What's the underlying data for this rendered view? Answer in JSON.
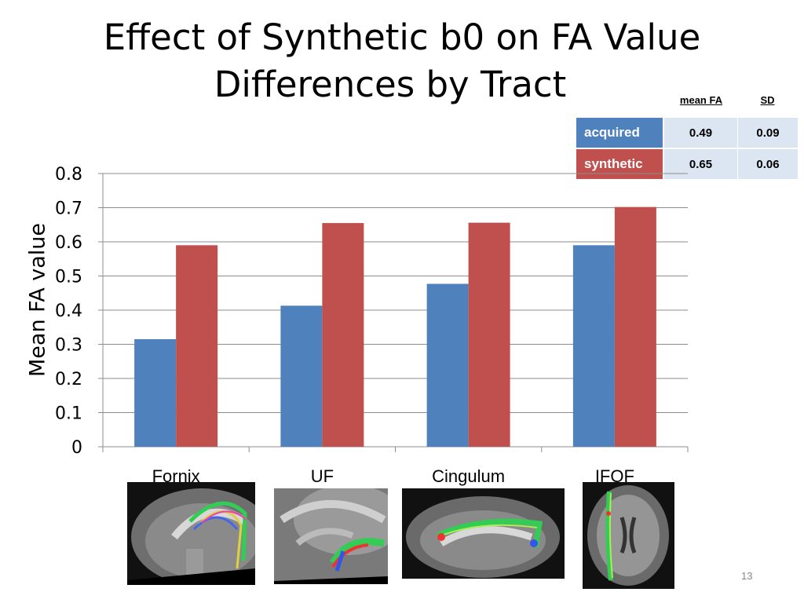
{
  "slide": {
    "title_line1": "Effect of Synthetic b0 on FA Value",
    "title_line2": "Differences by Tract",
    "page_number": "13"
  },
  "stats_table": {
    "headers": [
      "mean FA",
      "SD"
    ],
    "rows": [
      {
        "label": "acquired",
        "mean_fa": "0.49",
        "sd": "0.09",
        "color": "#4f81bd"
      },
      {
        "label": "synthetic",
        "mean_fa": "0.65",
        "sd": "0.06",
        "color": "#c0504d"
      }
    ]
  },
  "images": [
    {
      "caption": "Fornix",
      "icon": "sagittal-fornix-tractography-image"
    },
    {
      "caption": "UF",
      "icon": "sagittal-uf-tractography-image"
    },
    {
      "caption": "Cingulum",
      "icon": "sagittal-cingulum-tractography-image"
    },
    {
      "caption": "IFOF",
      "icon": "axial-ifof-tractography-image"
    }
  ],
  "chart_data": {
    "type": "bar",
    "title": "Effect of Synthetic b0 on FA Value Differences by Tract",
    "ylabel": "Mean FA value",
    "xlabel": "",
    "categories": [
      "Fornix",
      "UF",
      "Cingulum",
      "IFOF"
    ],
    "series": [
      {
        "name": "acquired",
        "color": "#4f81bd",
        "values": [
          0.315,
          0.413,
          0.477,
          0.59
        ]
      },
      {
        "name": "synthetic",
        "color": "#c0504d",
        "values": [
          0.59,
          0.655,
          0.656,
          0.702
        ]
      }
    ],
    "ylim": [
      0,
      0.8
    ],
    "yticks": [
      "0",
      "0.1",
      "0.2",
      "0.3",
      "0.4",
      "0.5",
      "0.6",
      "0.7",
      "0.8"
    ],
    "grid": true,
    "legend": "table top-right"
  }
}
